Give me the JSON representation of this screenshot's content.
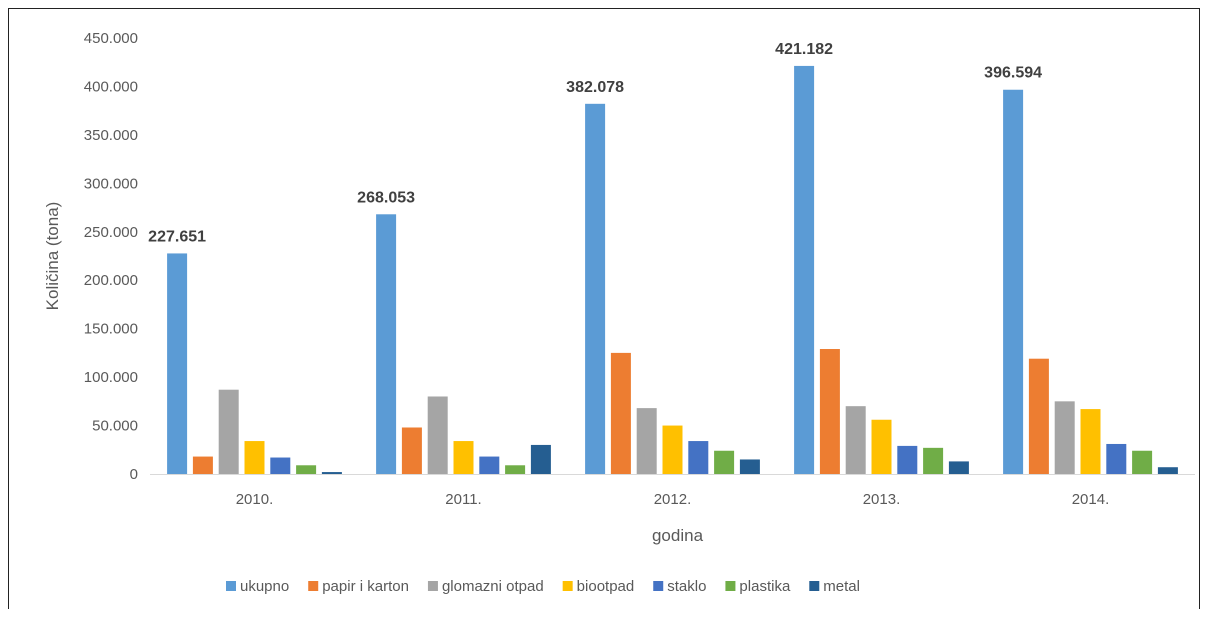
{
  "chart_data": {
    "type": "bar",
    "categories": [
      "2010.",
      "2011.",
      "2012.",
      "2013.",
      "2014."
    ],
    "series": [
      {
        "name": "ukupno",
        "color": "#5B9BD5",
        "values": [
          227651,
          268053,
          382078,
          421182,
          396594
        ]
      },
      {
        "name": "papir i karton",
        "color": "#ED7D31",
        "values": [
          18000,
          48000,
          125000,
          129000,
          119000
        ]
      },
      {
        "name": "glomazni otpad",
        "color": "#A5A5A5",
        "values": [
          87000,
          80000,
          68000,
          70000,
          75000
        ]
      },
      {
        "name": "biootpad",
        "color": "#FFC000",
        "values": [
          34000,
          34000,
          50000,
          56000,
          67000
        ]
      },
      {
        "name": "staklo",
        "color": "#4472C4",
        "values": [
          17000,
          18000,
          34000,
          29000,
          31000
        ]
      },
      {
        "name": "plastika",
        "color": "#70AD47",
        "values": [
          9000,
          9000,
          24000,
          27000,
          24000
        ]
      },
      {
        "name": "metal",
        "color": "#255E91",
        "values": [
          2000,
          30000,
          15000,
          13000,
          7000
        ]
      }
    ],
    "data_labels": [
      "227.651",
      "268.053",
      "382.078",
      "421.182",
      "396.594"
    ],
    "y_ticks": [
      "0",
      "50.000",
      "100.000",
      "150.000",
      "200.000",
      "250.000",
      "300.000",
      "350.000",
      "400.000",
      "450.000"
    ],
    "ylim": [
      0,
      450000
    ],
    "xlabel": "godina",
    "ylabel": "Količina (tona)",
    "legend": "bottom",
    "grid": false
  }
}
